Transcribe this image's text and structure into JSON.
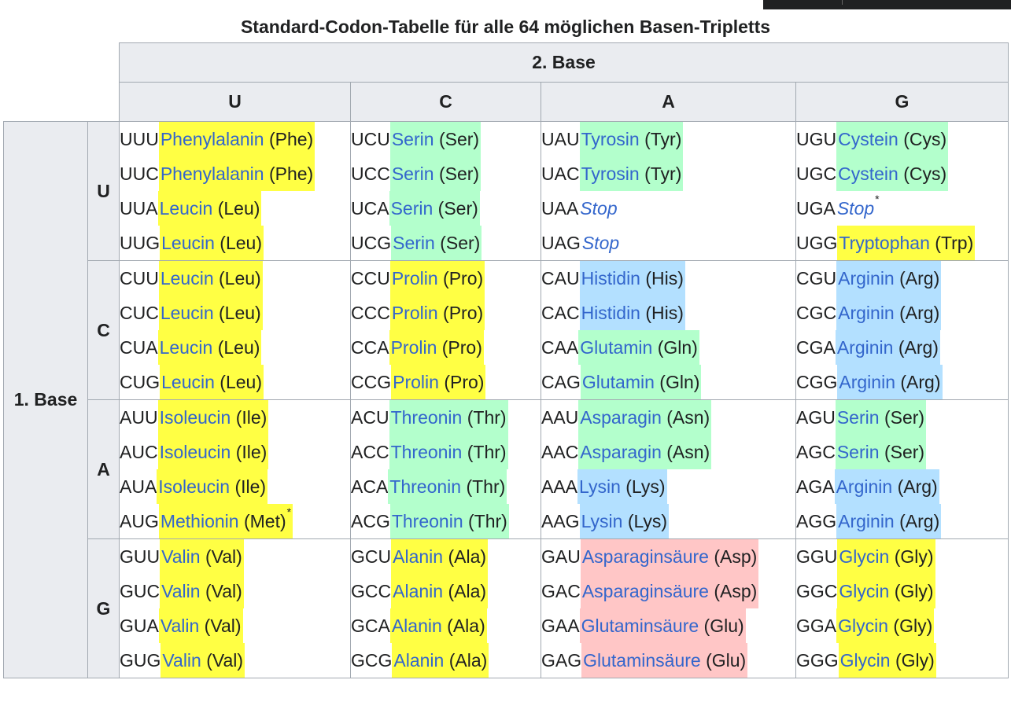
{
  "title": "Standard-Codon-Tabelle für alle 64 möglichen Basen-Tripletts",
  "second_base_label": "2. Base",
  "first_base_label": "1. Base",
  "columns": [
    "U",
    "C",
    "A",
    "G"
  ],
  "colors": {
    "yellow": "#ffff44",
    "green": "#b3ffcc",
    "blue": "#b3e0ff",
    "pink": "#ffc6c6",
    "link": "#3366cc",
    "header_bg": "#eaecf0",
    "border": "#a2a9b1"
  },
  "rows": [
    {
      "base": "U",
      "cells": [
        [
          {
            "codon": "UUU",
            "name": "Phenylalanin",
            "abbr": "(Phe)",
            "color": "yellow"
          },
          {
            "codon": "UUC",
            "name": "Phenylalanin",
            "abbr": "(Phe)",
            "color": "yellow"
          },
          {
            "codon": "UUA",
            "name": "Leucin",
            "abbr": "(Leu)",
            "color": "yellow"
          },
          {
            "codon": "UUG",
            "name": "Leucin",
            "abbr": "(Leu)",
            "color": "yellow"
          }
        ],
        [
          {
            "codon": "UCU",
            "name": "Serin",
            "abbr": "(Ser)",
            "color": "green"
          },
          {
            "codon": "UCC",
            "name": "Serin",
            "abbr": "(Ser)",
            "color": "green"
          },
          {
            "codon": "UCA",
            "name": "Serin",
            "abbr": "(Ser)",
            "color": "green"
          },
          {
            "codon": "UCG",
            "name": "Serin",
            "abbr": "(Ser)",
            "color": "green"
          }
        ],
        [
          {
            "codon": "UAU",
            "name": "Tyrosin",
            "abbr": "(Tyr)",
            "color": "green"
          },
          {
            "codon": "UAC",
            "name": "Tyrosin",
            "abbr": "(Tyr)",
            "color": "green"
          },
          {
            "codon": "UAA",
            "name": "Stop",
            "stop": true
          },
          {
            "codon": "UAG",
            "name": "Stop",
            "stop": true
          }
        ],
        [
          {
            "codon": "UGU",
            "name": "Cystein",
            "abbr": "(Cys)",
            "color": "green"
          },
          {
            "codon": "UGC",
            "name": "Cystein",
            "abbr": "(Cys)",
            "color": "green"
          },
          {
            "codon": "UGA",
            "name": "Stop",
            "stop": true,
            "note": "*"
          },
          {
            "codon": "UGG",
            "name": "Tryptophan",
            "abbr": "(Trp)",
            "color": "yellow"
          }
        ]
      ]
    },
    {
      "base": "C",
      "cells": [
        [
          {
            "codon": "CUU",
            "name": "Leucin",
            "abbr": "(Leu)",
            "color": "yellow"
          },
          {
            "codon": "CUC",
            "name": "Leucin",
            "abbr": "(Leu)",
            "color": "yellow"
          },
          {
            "codon": "CUA",
            "name": "Leucin",
            "abbr": "(Leu)",
            "color": "yellow"
          },
          {
            "codon": "CUG",
            "name": "Leucin",
            "abbr": "(Leu)",
            "color": "yellow"
          }
        ],
        [
          {
            "codon": "CCU",
            "name": "Prolin",
            "abbr": "(Pro)",
            "color": "yellow"
          },
          {
            "codon": "CCC",
            "name": "Prolin",
            "abbr": "(Pro)",
            "color": "yellow"
          },
          {
            "codon": "CCA",
            "name": "Prolin",
            "abbr": "(Pro)",
            "color": "yellow"
          },
          {
            "codon": "CCG",
            "name": "Prolin",
            "abbr": "(Pro)",
            "color": "yellow"
          }
        ],
        [
          {
            "codon": "CAU",
            "name": "Histidin",
            "abbr": "(His)",
            "color": "blue"
          },
          {
            "codon": "CAC",
            "name": "Histidin",
            "abbr": "(His)",
            "color": "blue"
          },
          {
            "codon": "CAA",
            "name": "Glutamin",
            "abbr": "(Gln)",
            "color": "green"
          },
          {
            "codon": "CAG",
            "name": "Glutamin",
            "abbr": "(Gln)",
            "color": "green"
          }
        ],
        [
          {
            "codon": "CGU",
            "name": "Arginin",
            "abbr": "(Arg)",
            "color": "blue"
          },
          {
            "codon": "CGC",
            "name": "Arginin",
            "abbr": "(Arg)",
            "color": "blue"
          },
          {
            "codon": "CGA",
            "name": "Arginin",
            "abbr": "(Arg)",
            "color": "blue"
          },
          {
            "codon": "CGG",
            "name": "Arginin",
            "abbr": "(Arg)",
            "color": "blue"
          }
        ]
      ]
    },
    {
      "base": "A",
      "cells": [
        [
          {
            "codon": "AUU",
            "name": "Isoleucin",
            "abbr": "(Ile)",
            "color": "yellow"
          },
          {
            "codon": "AUC",
            "name": "Isoleucin",
            "abbr": "(Ile)",
            "color": "yellow"
          },
          {
            "codon": "AUA",
            "name": "Isoleucin",
            "abbr": "(Ile)",
            "color": "yellow"
          },
          {
            "codon": "AUG",
            "name": "Methionin",
            "abbr": "(Met)",
            "color": "yellow",
            "note": "*"
          }
        ],
        [
          {
            "codon": "ACU",
            "name": "Threonin",
            "abbr": "(Thr)",
            "color": "green"
          },
          {
            "codon": "ACC",
            "name": "Threonin",
            "abbr": "(Thr)",
            "color": "green"
          },
          {
            "codon": "ACA",
            "name": "Threonin",
            "abbr": "(Thr)",
            "color": "green"
          },
          {
            "codon": "ACG",
            "name": "Threonin",
            "abbr": "(Thr)",
            "color": "green"
          }
        ],
        [
          {
            "codon": "AAU",
            "name": "Asparagin",
            "abbr": "(Asn)",
            "color": "green"
          },
          {
            "codon": "AAC",
            "name": "Asparagin",
            "abbr": "(Asn)",
            "color": "green"
          },
          {
            "codon": "AAA",
            "name": "Lysin",
            "abbr": "(Lys)",
            "color": "blue"
          },
          {
            "codon": "AAG",
            "name": "Lysin",
            "abbr": "(Lys)",
            "color": "blue"
          }
        ],
        [
          {
            "codon": "AGU",
            "name": "Serin",
            "abbr": "(Ser)",
            "color": "green"
          },
          {
            "codon": "AGC",
            "name": "Serin",
            "abbr": "(Ser)",
            "color": "green"
          },
          {
            "codon": "AGA",
            "name": "Arginin",
            "abbr": "(Arg)",
            "color": "blue"
          },
          {
            "codon": "AGG",
            "name": "Arginin",
            "abbr": "(Arg)",
            "color": "blue"
          }
        ]
      ]
    },
    {
      "base": "G",
      "cells": [
        [
          {
            "codon": "GUU",
            "name": "Valin",
            "abbr": "(Val)",
            "color": "yellow"
          },
          {
            "codon": "GUC",
            "name": "Valin",
            "abbr": "(Val)",
            "color": "yellow"
          },
          {
            "codon": "GUA",
            "name": "Valin",
            "abbr": "(Val)",
            "color": "yellow"
          },
          {
            "codon": "GUG",
            "name": "Valin",
            "abbr": "(Val)",
            "color": "yellow"
          }
        ],
        [
          {
            "codon": "GCU",
            "name": "Alanin",
            "abbr": "(Ala)",
            "color": "yellow"
          },
          {
            "codon": "GCC",
            "name": "Alanin",
            "abbr": "(Ala)",
            "color": "yellow"
          },
          {
            "codon": "GCA",
            "name": "Alanin",
            "abbr": "(Ala)",
            "color": "yellow"
          },
          {
            "codon": "GCG",
            "name": "Alanin",
            "abbr": "(Ala)",
            "color": "yellow"
          }
        ],
        [
          {
            "codon": "GAU",
            "name": "Asparaginsäure",
            "abbr": "(Asp)",
            "color": "pink"
          },
          {
            "codon": "GAC",
            "name": "Asparaginsäure",
            "abbr": "(Asp)",
            "color": "pink"
          },
          {
            "codon": "GAA",
            "name": "Glutaminsäure",
            "abbr": "(Glu)",
            "color": "pink"
          },
          {
            "codon": "GAG",
            "name": "Glutaminsäure",
            "abbr": "(Glu)",
            "color": "pink"
          }
        ],
        [
          {
            "codon": "GGU",
            "name": "Glycin",
            "abbr": "(Gly)",
            "color": "yellow"
          },
          {
            "codon": "GGC",
            "name": "Glycin",
            "abbr": "(Gly)",
            "color": "yellow"
          },
          {
            "codon": "GGA",
            "name": "Glycin",
            "abbr": "(Gly)",
            "color": "yellow"
          },
          {
            "codon": "GGG",
            "name": "Glycin",
            "abbr": "(Gly)",
            "color": "yellow"
          }
        ]
      ]
    }
  ]
}
